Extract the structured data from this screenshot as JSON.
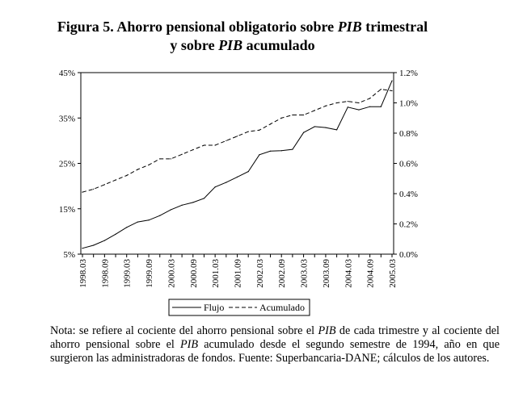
{
  "title_line1_a": "Figura 5. Ahorro pensional obligatorio sobre ",
  "title_line1_b": "PIB",
  "title_line1_c": " trimestral",
  "title_line2_a": "y sobre ",
  "title_line2_b": "PIB",
  "title_line2_c": " acumulado",
  "note": {
    "a": "Nota: se refiere al cociente del ahorro pensional sobre el ",
    "b": "PIB",
    "c": " de cada trimestre y al cociente del ahorro pensional sobre el ",
    "d": "PIB",
    "e": " acumulado desde el segundo semestre de 1994, año en que surgieron las administradoras de fondos. Fuente: Superbancaria-DANE; cálculos de los autores."
  },
  "chart_data": {
    "type": "line",
    "title": "Figura 5. Ahorro pensional obligatorio sobre PIB trimestral y sobre PIB acumulado",
    "x_tick_labels": [
      "1998.03",
      "1998.09",
      "1999.03",
      "1999.09",
      "2000.03",
      "2000.09",
      "2001.03",
      "2001.09",
      "2002.03",
      "2002.09",
      "2003.03",
      "2003.09",
      "2004.03",
      "2004.09",
      "2005.03"
    ],
    "n_points": 29,
    "y_left": {
      "ticks": [
        "5%",
        "15%",
        "25%",
        "35%",
        "45%"
      ],
      "tick_values": [
        5,
        15,
        25,
        35,
        45
      ],
      "ylim": [
        5,
        45
      ]
    },
    "y_right": {
      "ticks": [
        "0.0%",
        "0.2%",
        "0.4%",
        "0.6%",
        "0.8%",
        "1.0%",
        "1.2%"
      ],
      "tick_values": [
        0,
        0.2,
        0.4,
        0.6,
        0.8,
        1.0,
        1.2
      ],
      "ylim": [
        0,
        1.2
      ]
    },
    "series": [
      {
        "name": "Flujo",
        "axis": "left",
        "style": "solid",
        "values": [
          6.3,
          6.95,
          8.0,
          9.4,
          10.9,
          12.1,
          12.5,
          13.5,
          14.8,
          15.8,
          16.4,
          17.3,
          19.8,
          20.8,
          22.0,
          23.2,
          26.9,
          27.7,
          27.8,
          28.1,
          31.8,
          33.1,
          32.9,
          32.4,
          37.4,
          36.8,
          37.5,
          37.5,
          43.2
        ]
      },
      {
        "name": "Acumulado",
        "axis": "right",
        "style": "dashed",
        "values": [
          0.41,
          0.43,
          0.46,
          0.49,
          0.52,
          0.56,
          0.59,
          0.63,
          0.63,
          0.66,
          0.69,
          0.72,
          0.72,
          0.75,
          0.78,
          0.81,
          0.82,
          0.86,
          0.9,
          0.92,
          0.92,
          0.95,
          0.98,
          1.0,
          1.01,
          1.0,
          1.03,
          1.09,
          1.08
        ]
      }
    ],
    "legend": {
      "position": "bottom-center",
      "entries": [
        "Flujo",
        "Acumulado"
      ]
    },
    "grid": false
  }
}
